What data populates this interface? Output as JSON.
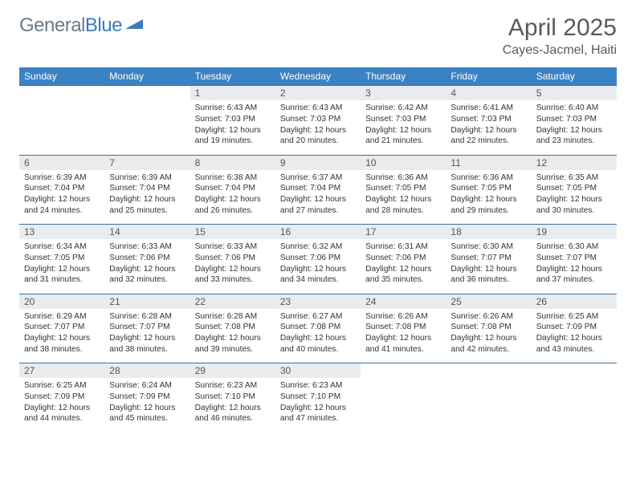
{
  "brand": {
    "part1": "General",
    "part2": "Blue"
  },
  "title": "April 2025",
  "location": "Cayes-Jacmel, Haiti",
  "colors": {
    "header_bg": "#3b82c4",
    "header_text": "#ffffff",
    "daynum_bg": "#e9ecef",
    "row_border": "#3b6fa0",
    "logo_gray": "#6b7a86",
    "logo_blue": "#3c7bbf",
    "title_color": "#5a5a5a"
  },
  "weekdays": [
    "Sunday",
    "Monday",
    "Tuesday",
    "Wednesday",
    "Thursday",
    "Friday",
    "Saturday"
  ],
  "weeks": [
    [
      null,
      null,
      {
        "n": "1",
        "sr": "6:43 AM",
        "ss": "7:03 PM",
        "dl": "12 hours and 19 minutes."
      },
      {
        "n": "2",
        "sr": "6:43 AM",
        "ss": "7:03 PM",
        "dl": "12 hours and 20 minutes."
      },
      {
        "n": "3",
        "sr": "6:42 AM",
        "ss": "7:03 PM",
        "dl": "12 hours and 21 minutes."
      },
      {
        "n": "4",
        "sr": "6:41 AM",
        "ss": "7:03 PM",
        "dl": "12 hours and 22 minutes."
      },
      {
        "n": "5",
        "sr": "6:40 AM",
        "ss": "7:03 PM",
        "dl": "12 hours and 23 minutes."
      }
    ],
    [
      {
        "n": "6",
        "sr": "6:39 AM",
        "ss": "7:04 PM",
        "dl": "12 hours and 24 minutes."
      },
      {
        "n": "7",
        "sr": "6:39 AM",
        "ss": "7:04 PM",
        "dl": "12 hours and 25 minutes."
      },
      {
        "n": "8",
        "sr": "6:38 AM",
        "ss": "7:04 PM",
        "dl": "12 hours and 26 minutes."
      },
      {
        "n": "9",
        "sr": "6:37 AM",
        "ss": "7:04 PM",
        "dl": "12 hours and 27 minutes."
      },
      {
        "n": "10",
        "sr": "6:36 AM",
        "ss": "7:05 PM",
        "dl": "12 hours and 28 minutes."
      },
      {
        "n": "11",
        "sr": "6:36 AM",
        "ss": "7:05 PM",
        "dl": "12 hours and 29 minutes."
      },
      {
        "n": "12",
        "sr": "6:35 AM",
        "ss": "7:05 PM",
        "dl": "12 hours and 30 minutes."
      }
    ],
    [
      {
        "n": "13",
        "sr": "6:34 AM",
        "ss": "7:05 PM",
        "dl": "12 hours and 31 minutes."
      },
      {
        "n": "14",
        "sr": "6:33 AM",
        "ss": "7:06 PM",
        "dl": "12 hours and 32 minutes."
      },
      {
        "n": "15",
        "sr": "6:33 AM",
        "ss": "7:06 PM",
        "dl": "12 hours and 33 minutes."
      },
      {
        "n": "16",
        "sr": "6:32 AM",
        "ss": "7:06 PM",
        "dl": "12 hours and 34 minutes."
      },
      {
        "n": "17",
        "sr": "6:31 AM",
        "ss": "7:06 PM",
        "dl": "12 hours and 35 minutes."
      },
      {
        "n": "18",
        "sr": "6:30 AM",
        "ss": "7:07 PM",
        "dl": "12 hours and 36 minutes."
      },
      {
        "n": "19",
        "sr": "6:30 AM",
        "ss": "7:07 PM",
        "dl": "12 hours and 37 minutes."
      }
    ],
    [
      {
        "n": "20",
        "sr": "6:29 AM",
        "ss": "7:07 PM",
        "dl": "12 hours and 38 minutes."
      },
      {
        "n": "21",
        "sr": "6:28 AM",
        "ss": "7:07 PM",
        "dl": "12 hours and 38 minutes."
      },
      {
        "n": "22",
        "sr": "6:28 AM",
        "ss": "7:08 PM",
        "dl": "12 hours and 39 minutes."
      },
      {
        "n": "23",
        "sr": "6:27 AM",
        "ss": "7:08 PM",
        "dl": "12 hours and 40 minutes."
      },
      {
        "n": "24",
        "sr": "6:26 AM",
        "ss": "7:08 PM",
        "dl": "12 hours and 41 minutes."
      },
      {
        "n": "25",
        "sr": "6:26 AM",
        "ss": "7:08 PM",
        "dl": "12 hours and 42 minutes."
      },
      {
        "n": "26",
        "sr": "6:25 AM",
        "ss": "7:09 PM",
        "dl": "12 hours and 43 minutes."
      }
    ],
    [
      {
        "n": "27",
        "sr": "6:25 AM",
        "ss": "7:09 PM",
        "dl": "12 hours and 44 minutes."
      },
      {
        "n": "28",
        "sr": "6:24 AM",
        "ss": "7:09 PM",
        "dl": "12 hours and 45 minutes."
      },
      {
        "n": "29",
        "sr": "6:23 AM",
        "ss": "7:10 PM",
        "dl": "12 hours and 46 minutes."
      },
      {
        "n": "30",
        "sr": "6:23 AM",
        "ss": "7:10 PM",
        "dl": "12 hours and 47 minutes."
      },
      null,
      null,
      null
    ]
  ],
  "labels": {
    "sunrise": "Sunrise:",
    "sunset": "Sunset:",
    "daylight": "Daylight:"
  }
}
